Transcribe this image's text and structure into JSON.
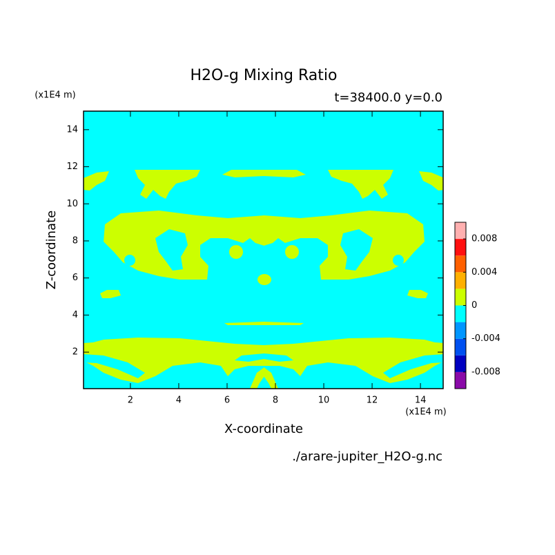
{
  "chart_data": {
    "type": "contour",
    "title": "H2O-g Mixing Ratio",
    "subtitle": "t=38400.0 y=0.0",
    "x_label": "X-coordinate",
    "y_label": "Z-coordinate",
    "x_unit": "(x1E4 m)",
    "y_unit": "(x1E4 m)",
    "source": "./arare-jupiter_H2O-g.nc",
    "xlim": [
      0.06,
      14.94
    ],
    "ylim": [
      0.03,
      15
    ],
    "xticks": [
      2,
      4,
      6,
      8,
      10,
      12,
      14
    ],
    "yticks": [
      2,
      4,
      6,
      8,
      10,
      12,
      14
    ],
    "colorbar": {
      "levels": [
        -0.01,
        -0.008,
        -0.006,
        -0.004,
        -0.002,
        0,
        0.002,
        0.004,
        0.006,
        0.008,
        0.01
      ],
      "colors": [
        "#8a0aa8",
        "#0000c0",
        "#0050f0",
        "#0096ff",
        "#00ffff",
        "#ccff00",
        "#ffb000",
        "#ff6000",
        "#ff1010",
        "#ffb0b0"
      ],
      "ticks": [
        -0.008,
        -0.004,
        0,
        0.004,
        0.008
      ]
    }
  }
}
